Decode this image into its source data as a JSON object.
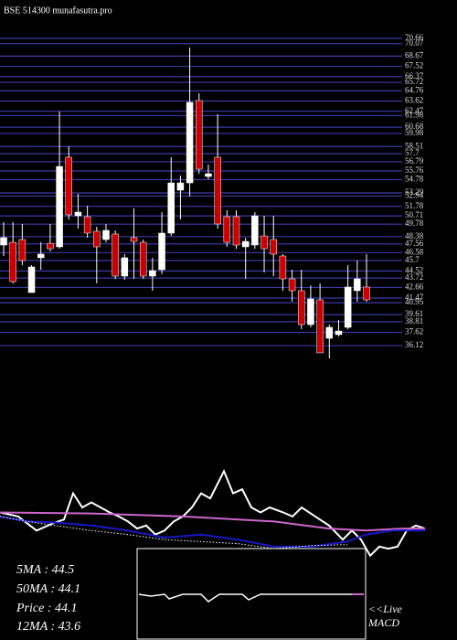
{
  "chart_data": [
    {
      "type": "candlestick",
      "title": "BSE 514300 munafasutra.pro",
      "open": [
        47.43,
        47.74,
        48.05,
        42.09,
        46.0,
        47.63,
        47.23,
        57.3,
        50.72,
        50.62,
        48.98,
        48.05,
        48.67,
        43.94,
        48.26,
        47.74,
        43.94,
        44.66,
        48.77,
        53.6,
        54.42,
        63.67,
        55.14,
        57.3,
        50.62,
        50.62,
        47.23,
        47.43,
        48.46,
        48.05,
        46.2,
        43.63,
        42.3,
        38.49,
        41.27,
        36.95,
        37.36,
        38.18,
        42.3,
        42.71
      ],
      "high": [
        50.0,
        50.0,
        49.8,
        45.17,
        47.74,
        49.8,
        62.44,
        58.53,
        53.19,
        51.85,
        49.49,
        49.8,
        49.08,
        46.41,
        51.55,
        48.05,
        46.0,
        51.13,
        57.3,
        55.24,
        69.63,
        64.49,
        56.48,
        62.13,
        51.34,
        51.34,
        48.26,
        51.13,
        50.72,
        50.72,
        46.41,
        44.66,
        44.66,
        42.91,
        43.12,
        38.49,
        39.01,
        45.17,
        45.69,
        46.41
      ],
      "low": [
        46.2,
        43.12,
        45.17,
        42.09,
        44.66,
        46.71,
        47.02,
        50.31,
        49.28,
        48.26,
        43.12,
        47.74,
        43.63,
        43.53,
        43.63,
        43.63,
        42.3,
        44.15,
        48.46,
        50.31,
        52.88,
        55.45,
        54.83,
        49.28,
        47.23,
        47.02,
        43.63,
        47.02,
        44.35,
        43.94,
        42.3,
        41.06,
        37.98,
        38.18,
        35.31,
        34.69,
        37.15,
        37.98,
        41.06,
        41.06
      ],
      "close": [
        48.26,
        43.32,
        45.69,
        44.97,
        46.41,
        47.02,
        56.27,
        50.83,
        51.13,
        48.77,
        47.23,
        49.08,
        43.94,
        46.0,
        47.84,
        43.94,
        44.56,
        48.77,
        54.42,
        54.42,
        63.47,
        55.96,
        55.45,
        49.8,
        47.74,
        47.43,
        47.84,
        50.72,
        47.02,
        46.41,
        43.63,
        42.3,
        38.49,
        41.37,
        35.31,
        38.18,
        37.77,
        42.71,
        43.63,
        41.27
      ],
      "up_color": "#ffffff",
      "down_color": "#cc0000",
      "grid_color": "#3a3aa8",
      "ylim": [
        34.69,
        70.66
      ],
      "yticks": [
        70.66,
        70.07,
        68.67,
        67.52,
        66.37,
        65.72,
        64.76,
        63.62,
        62.47,
        61.98,
        60.68,
        59.98,
        58.51,
        57.7,
        56.79,
        55.76,
        54.78,
        53.29,
        52.94,
        51.78,
        50.71,
        49.78,
        48.38,
        47.56,
        46.58,
        45.7,
        44.52,
        43.72,
        42.66,
        41.47,
        40.95,
        39.61,
        38.81,
        37.62,
        36.12
      ],
      "grid": true
    },
    {
      "type": "line",
      "xlim": [
        0,
        500
      ],
      "ylim": [
        0,
        100
      ],
      "series": [
        {
          "color": "#ffffff",
          "x": [
            0,
            20,
            40,
            60,
            70,
            80,
            90,
            100,
            110,
            120,
            130,
            140,
            150,
            160,
            170,
            180,
            190,
            200,
            210,
            220,
            230,
            245,
            255,
            265,
            275,
            285,
            295,
            310,
            320,
            330,
            345,
            360,
            375,
            385,
            395,
            405,
            415,
            425,
            435,
            445,
            455,
            465
          ],
          "values": [
            45,
            41,
            27,
            35,
            38,
            64,
            50,
            55,
            50,
            45,
            41,
            36,
            29,
            32,
            23,
            27,
            36,
            41,
            50,
            64,
            59,
            86,
            64,
            68,
            50,
            45,
            50,
            45,
            41,
            50,
            41,
            32,
            18,
            27,
            18,
            2,
            11,
            9,
            11,
            27,
            32,
            29
          ]
        },
        {
          "color": "#cc66cc",
          "x": [
            0,
            100,
            200,
            300,
            360,
            400,
            440,
            465
          ],
          "values": [
            45,
            44,
            41,
            36,
            29,
            27,
            29,
            29
          ]
        },
        {
          "color": "#1818c8",
          "x": [
            0,
            30,
            60,
            100,
            140,
            180,
            220,
            260,
            300,
            340,
            380,
            400,
            430,
            465
          ],
          "values": [
            41,
            36,
            35,
            32,
            27,
            20,
            23,
            18,
            11,
            11,
            16,
            23,
            27,
            27
          ]
        },
        {
          "color": "#ffffff",
          "dashed": true,
          "x": [
            0,
            30,
            60,
            100,
            140,
            180,
            220,
            260,
            300,
            340,
            380
          ],
          "values": [
            41,
            36,
            32,
            27,
            23,
            18,
            16,
            14,
            9,
            12,
            13
          ]
        }
      ],
      "annotations": [
        "5MA : 44.5",
        "50MA : 44.1",
        "Price  : 44.1",
        "12MA : 43.6"
      ],
      "live_label": "<<Live",
      "macd_label": "MACD"
    }
  ]
}
